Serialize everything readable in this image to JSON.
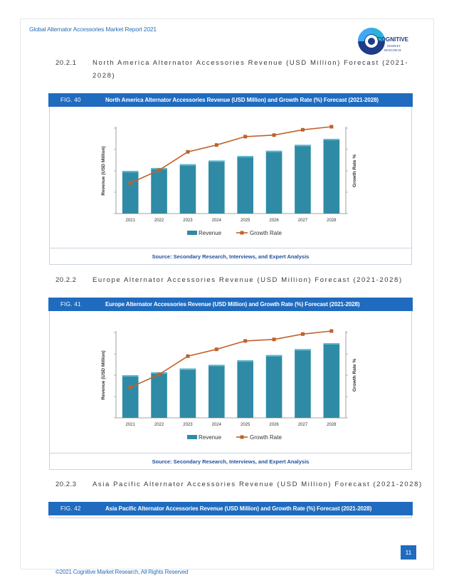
{
  "header": {
    "running_title": "Global Alternator Accessories Market Report 2021"
  },
  "logo": {
    "word": "COGNITIVE",
    "sub1": "MARKET",
    "sub2": "RESEARCH"
  },
  "sections": [
    {
      "number": "20.2.1",
      "title_line1": "North America Alternator Accessories Revenue (USD Million) Forecast (2021-",
      "title_line2": "2028)",
      "figure_number": "FIG. 40",
      "figure_title": "North America Alternator Accessories Revenue (USD Million) and Growth Rate (%) Forecast (2021-2028)",
      "source": "Source: Secondary Research, Interviews, and Expert Analysis"
    },
    {
      "number": "20.2.2",
      "title_line1": "Europe Alternator Accessories Revenue (USD Million) Forecast (2021-2028)",
      "figure_number": "FIG. 41",
      "figure_title": "Europe Alternator Accessories Revenue (USD Million) and Growth Rate (%) Forecast (2021-2028)",
      "source": "Source: Secondary Research, Interviews, and Expert Analysis"
    },
    {
      "number": "20.2.3",
      "title_line1": "Asia Pacific Alternator Accessories Revenue (USD Million) Forecast (2021-2028)",
      "figure_number": "FIG. 42",
      "figure_title": "Asia Pacific Alternator Accessories Revenue (USD Million) and Growth Rate (%) Forecast (2021-2028)"
    }
  ],
  "chart_data": [
    {
      "type": "bar",
      "categories": [
        "2021",
        "2022",
        "2023",
        "2024",
        "2025",
        "2026",
        "2027",
        "2028"
      ],
      "series": [
        {
          "name": "Revenue",
          "type": "bar",
          "axis": "left",
          "color": "#2f8ba5",
          "values": [
            0.57,
            0.61,
            0.66,
            0.71,
            0.77,
            0.84,
            0.92,
            1.0
          ]
        },
        {
          "name": "Growth Rate",
          "type": "line",
          "axis": "right",
          "color": "#c0622b",
          "values": [
            0.26,
            0.43,
            0.67,
            0.76,
            0.87,
            0.89,
            0.96,
            1.0
          ]
        }
      ],
      "ylabel": "Revenue (USD Million)",
      "y2label": "Growth Rate %",
      "legend": "bottom",
      "grid": false
    },
    {
      "type": "bar",
      "categories": [
        "2021",
        "2022",
        "2023",
        "2024",
        "2025",
        "2026",
        "2027",
        "2028"
      ],
      "series": [
        {
          "name": "Revenue",
          "type": "bar",
          "axis": "left",
          "color": "#2f8ba5",
          "values": [
            0.57,
            0.61,
            0.66,
            0.71,
            0.77,
            0.84,
            0.92,
            1.0
          ]
        },
        {
          "name": "Growth Rate",
          "type": "line",
          "axis": "right",
          "color": "#c0622b",
          "values": [
            0.26,
            0.43,
            0.67,
            0.76,
            0.87,
            0.89,
            0.96,
            1.0
          ]
        }
      ],
      "ylabel": "Revenue (USD Million)",
      "y2label": "Growth Rate %",
      "legend": "bottom",
      "grid": false
    }
  ],
  "page": {
    "number": "11"
  },
  "footer": {
    "copyright": "©2021 Cognitive Market Research, All Rights Reserved"
  }
}
